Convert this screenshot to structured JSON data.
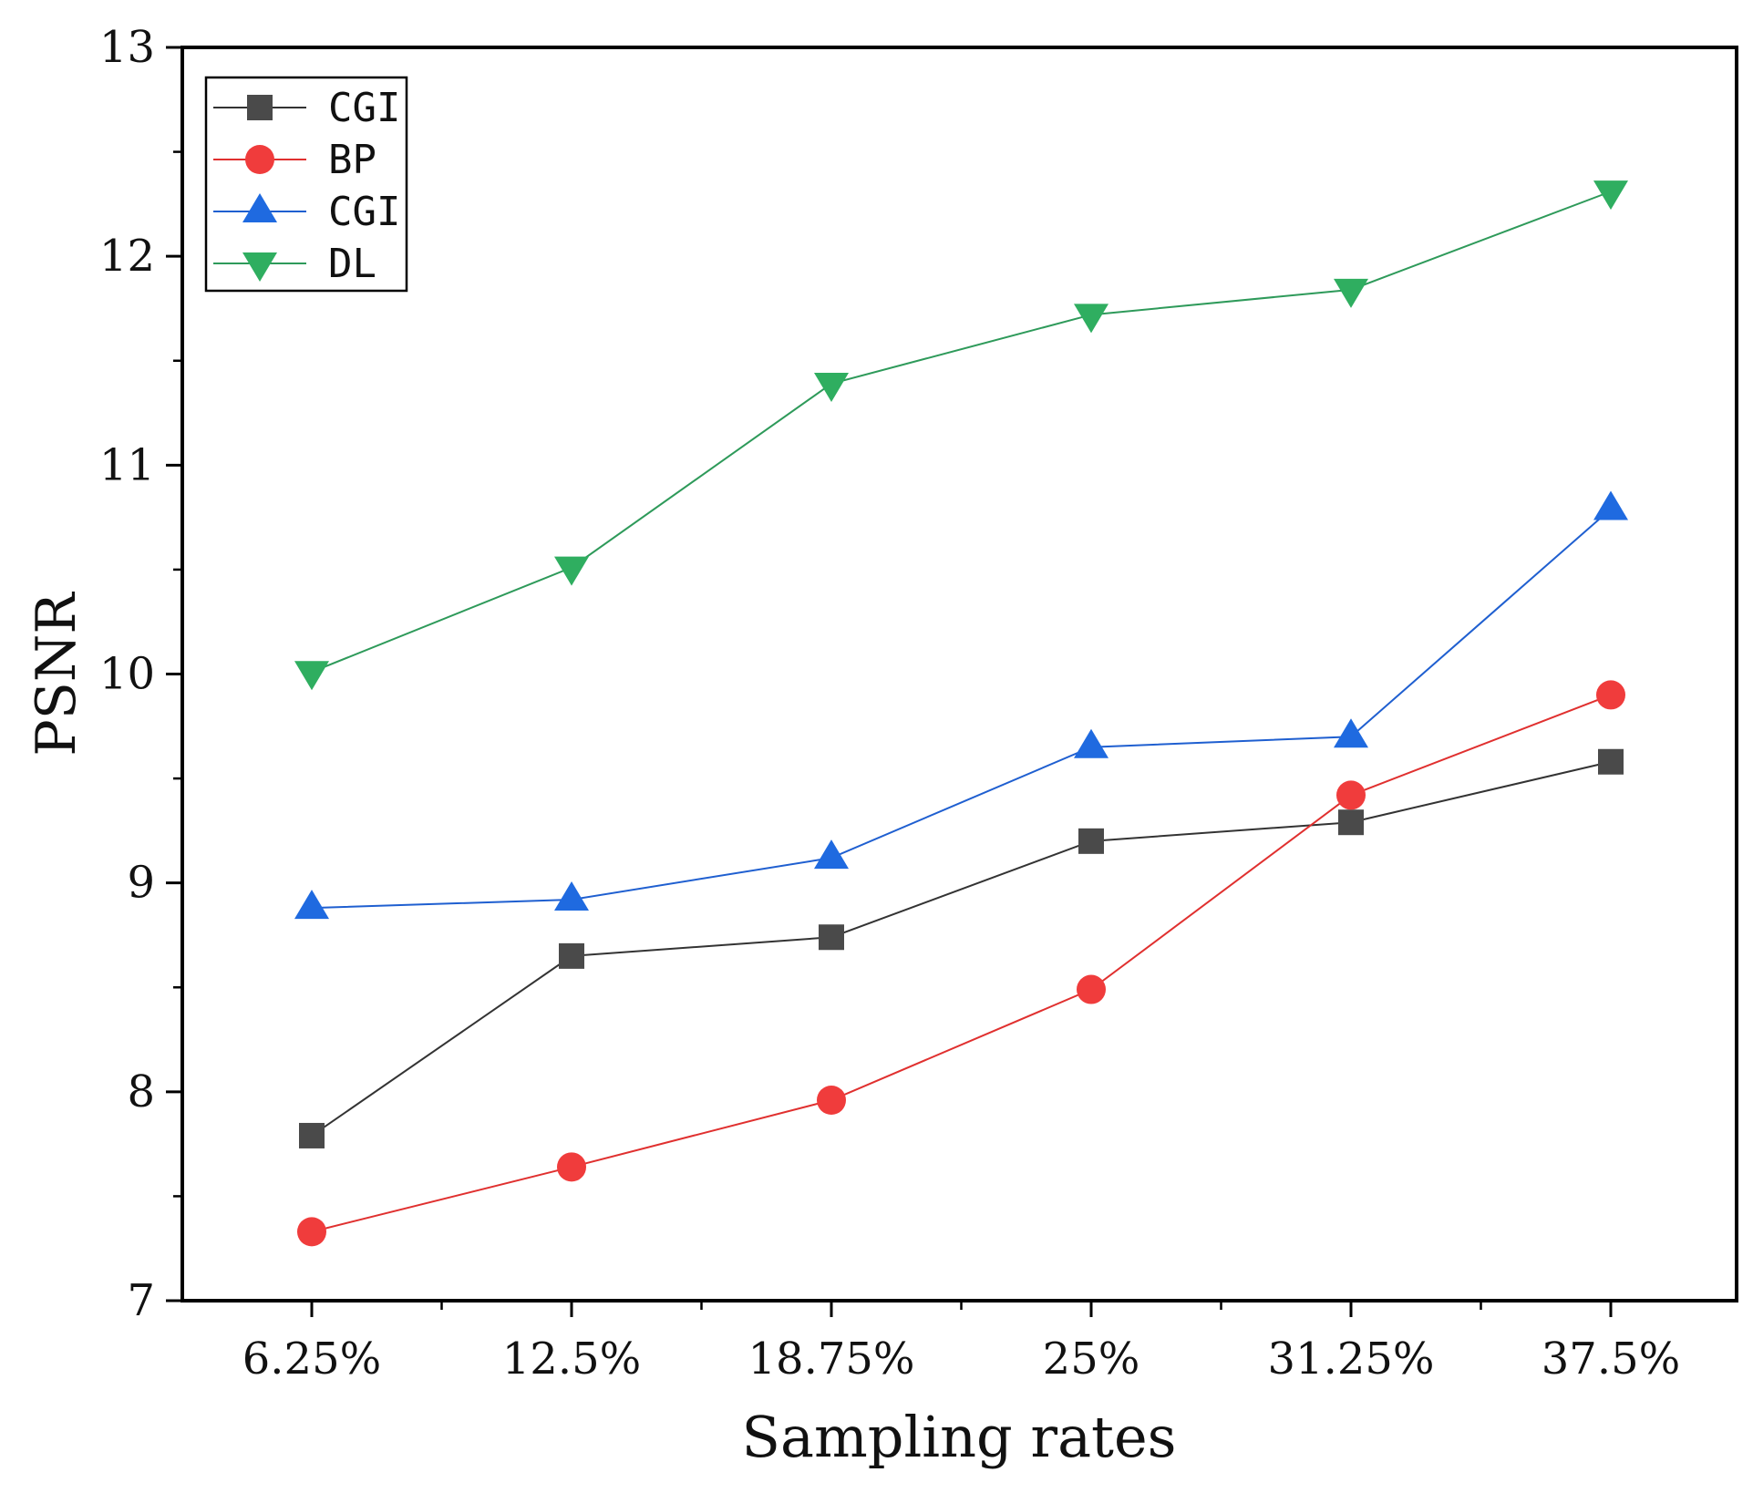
{
  "chart_data": {
    "type": "line",
    "title": "",
    "xlabel": "Sampling rates",
    "ylabel": "PSNR",
    "categories": [
      "6.25%",
      "12.5%",
      "18.75%",
      "25%",
      "31.25%",
      "37.5%"
    ],
    "ylim": [
      7,
      13
    ],
    "yticks": [
      7,
      8,
      9,
      10,
      11,
      12,
      13
    ],
    "grid": false,
    "legend_position": "top-left",
    "series": [
      {
        "name": "CGI",
        "marker": "square",
        "color": "#333333",
        "marker_color": "#4a4a4a",
        "values": [
          7.79,
          8.65,
          8.74,
          9.2,
          9.29,
          9.58
        ]
      },
      {
        "name": "BP",
        "marker": "circle",
        "color": "#e0302f",
        "marker_color": "#f03c3c",
        "values": [
          7.33,
          7.64,
          7.96,
          8.49,
          9.42,
          9.9
        ]
      },
      {
        "name": "CGI",
        "marker": "triangle-up",
        "color": "#1f5fd0",
        "marker_color": "#1f6ae0",
        "values": [
          8.88,
          8.92,
          9.12,
          9.65,
          9.7,
          10.79
        ]
      },
      {
        "name": "DL",
        "marker": "triangle-down",
        "color": "#2e9a5a",
        "marker_color": "#2fae60",
        "values": [
          10.01,
          10.51,
          11.39,
          11.72,
          11.84,
          12.31
        ]
      }
    ]
  }
}
